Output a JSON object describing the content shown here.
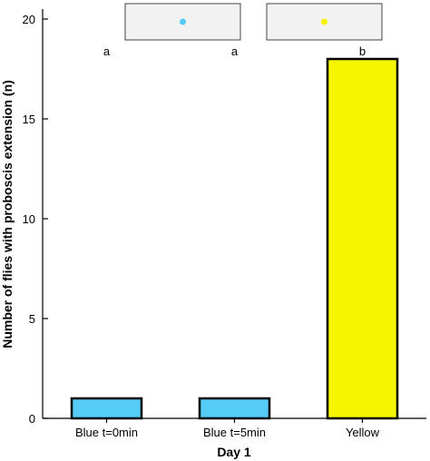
{
  "chart_data": {
    "type": "bar",
    "title": "",
    "xlabel": "Day 1",
    "ylabel": "Number of flies with proboscis extension (n)",
    "categories": [
      "Blue t=0min",
      "Blue t=5min",
      "Yellow"
    ],
    "values": [
      1,
      1,
      18
    ],
    "bar_colors": [
      "#55ccf5",
      "#55ccf5",
      "#f5f500"
    ],
    "significance_letters": [
      "a",
      "a",
      "b"
    ],
    "ylim": [
      0,
      20
    ],
    "yticks": [
      0,
      5,
      10,
      15,
      20
    ],
    "grid": false,
    "legend": "none",
    "insets": [
      {
        "dot_color": "#55ccf5"
      },
      {
        "dot_color": "#f5f500"
      }
    ]
  }
}
